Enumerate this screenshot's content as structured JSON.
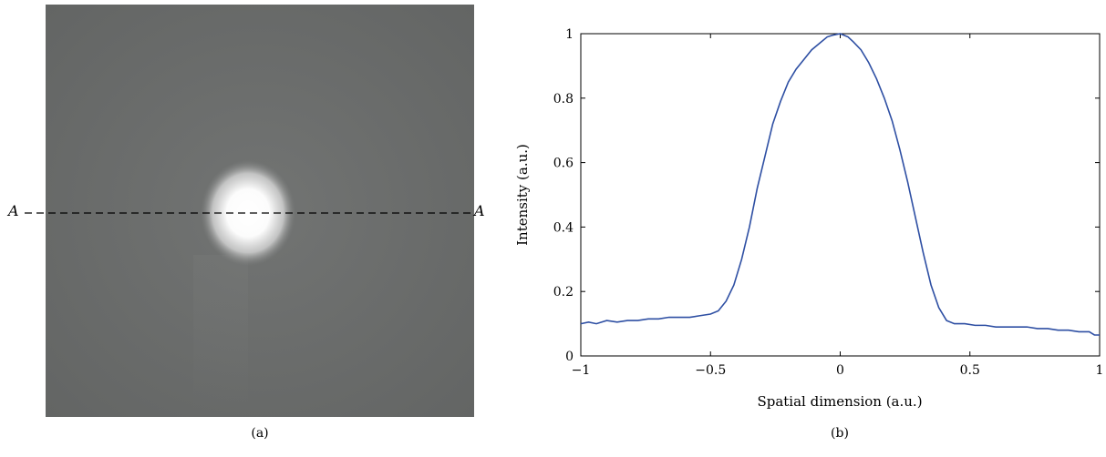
{
  "panels": {
    "a": {
      "caption": "(a)",
      "line_label_left": "A",
      "line_label_right": "A"
    },
    "b": {
      "caption": "(b)"
    }
  },
  "colors": {
    "line": "#2E4FA3",
    "image_background": "#6a6c6b",
    "spot": "#ffffff"
  },
  "chart_data": {
    "type": "line",
    "title": "",
    "xlabel": "Spatial dimension (a.u.)",
    "ylabel": "Intensity (a.u.)",
    "xlim": [
      -1,
      1
    ],
    "ylim": [
      0,
      1
    ],
    "xticks": [
      -1,
      -0.5,
      0,
      0.5,
      1
    ],
    "xtick_labels": [
      "−1",
      "−0.5",
      "0",
      "0.5",
      "1"
    ],
    "yticks": [
      0,
      0.2,
      0.4,
      0.6,
      0.8,
      1
    ],
    "ytick_labels": [
      "0",
      "0.2",
      "0.4",
      "0.6",
      "0.8",
      "1"
    ],
    "grid": false,
    "series": [
      {
        "x": [
          -1,
          -0.97,
          -0.94,
          -0.9,
          -0.86,
          -0.82,
          -0.78,
          -0.74,
          -0.7,
          -0.66,
          -0.62,
          -0.58,
          -0.54,
          -0.5,
          -0.47,
          -0.44,
          -0.41,
          -0.38,
          -0.35,
          -0.32,
          -0.29,
          -0.26,
          -0.23,
          -0.2,
          -0.17,
          -0.14,
          -0.11,
          -0.08,
          -0.05,
          -0.03,
          0,
          0.03,
          0.05,
          0.08,
          0.11,
          0.14,
          0.17,
          0.2,
          0.23,
          0.26,
          0.29,
          0.32,
          0.35,
          0.38,
          0.41,
          0.44,
          0.48,
          0.52,
          0.56,
          0.6,
          0.64,
          0.68,
          0.72,
          0.76,
          0.8,
          0.84,
          0.88,
          0.92,
          0.96,
          0.98,
          1
        ],
        "y": [
          0.1,
          0.105,
          0.1,
          0.11,
          0.105,
          0.11,
          0.11,
          0.115,
          0.115,
          0.12,
          0.12,
          0.12,
          0.125,
          0.13,
          0.14,
          0.17,
          0.22,
          0.3,
          0.4,
          0.52,
          0.62,
          0.72,
          0.79,
          0.85,
          0.89,
          0.92,
          0.95,
          0.97,
          0.99,
          0.995,
          1.0,
          0.99,
          0.975,
          0.95,
          0.91,
          0.86,
          0.8,
          0.73,
          0.64,
          0.54,
          0.43,
          0.32,
          0.22,
          0.15,
          0.11,
          0.1,
          0.1,
          0.095,
          0.095,
          0.09,
          0.09,
          0.09,
          0.09,
          0.085,
          0.085,
          0.08,
          0.08,
          0.075,
          0.075,
          0.065,
          0.065
        ]
      }
    ]
  }
}
